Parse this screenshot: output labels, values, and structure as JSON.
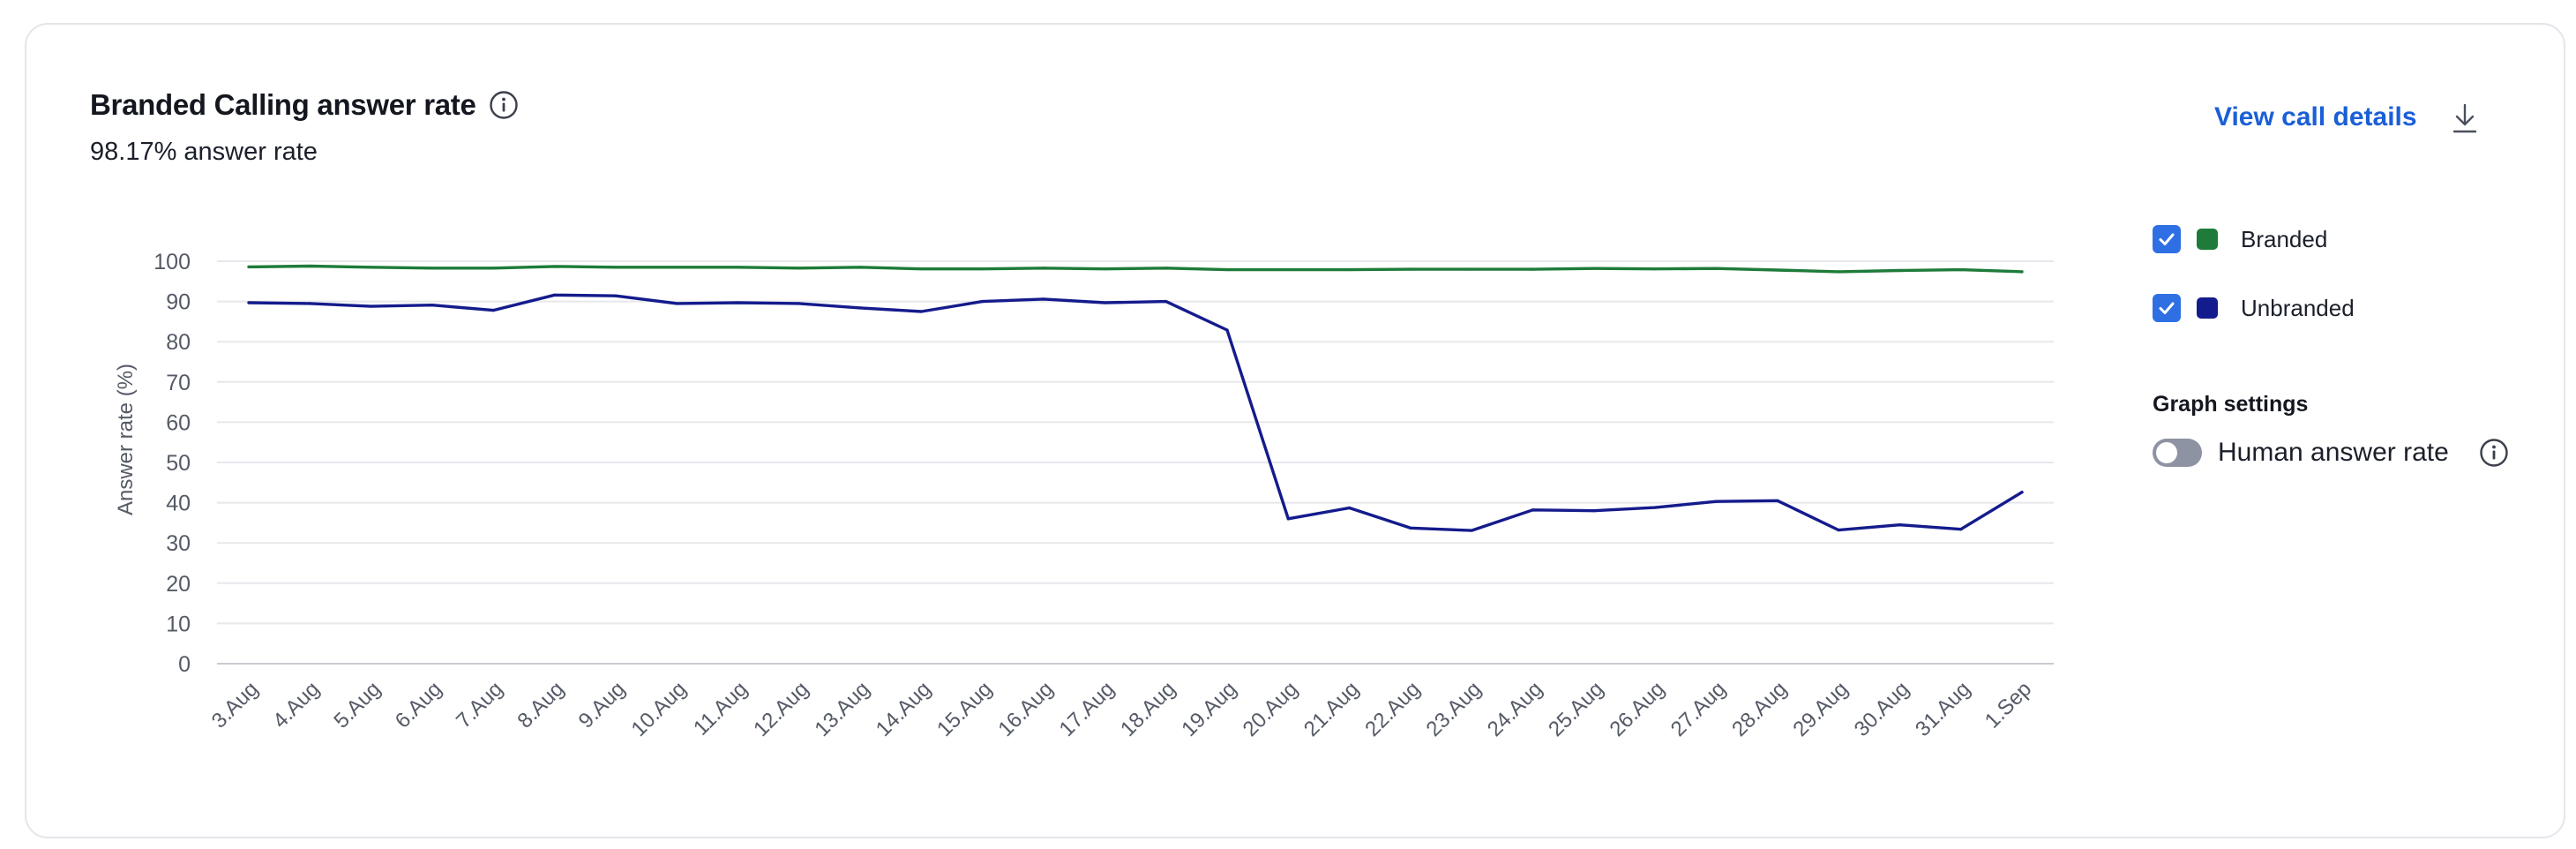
{
  "card": {
    "title": "Branded Calling answer rate",
    "subtitle": "98.17% answer rate",
    "view_link": "View call details"
  },
  "legend": {
    "items": [
      {
        "label": "Branded",
        "color": "#1e7b3a",
        "checked": true
      },
      {
        "label": "Unbranded",
        "color": "#141b8c",
        "checked": true
      }
    ]
  },
  "graph_settings": {
    "title": "Graph settings",
    "toggle_label": "Human answer rate",
    "toggle_on": false
  },
  "icons": {
    "info": "info-circle-icon",
    "download": "download-icon",
    "check": "checkmark-icon"
  },
  "chart_data": {
    "type": "line",
    "title": "",
    "xlabel": "",
    "ylabel": "Answer rate (%)",
    "ylim": [
      0,
      100
    ],
    "yticks": [
      0,
      10,
      20,
      30,
      40,
      50,
      60,
      70,
      80,
      90,
      100
    ],
    "grid": true,
    "categories": [
      "3.Aug",
      "4.Aug",
      "5.Aug",
      "6.Aug",
      "7.Aug",
      "8.Aug",
      "9.Aug",
      "10.Aug",
      "11.Aug",
      "12.Aug",
      "13.Aug",
      "14.Aug",
      "15.Aug",
      "16.Aug",
      "17.Aug",
      "18.Aug",
      "19.Aug",
      "20.Aug",
      "21.Aug",
      "22.Aug",
      "23.Aug",
      "24.Aug",
      "25.Aug",
      "26.Aug",
      "27.Aug",
      "28.Aug",
      "29.Aug",
      "30.Aug",
      "31.Aug",
      "1.Sep"
    ],
    "series": [
      {
        "name": "Branded",
        "color": "#1e7b3a",
        "values": [
          98.6,
          98.8,
          98.5,
          98.3,
          98.3,
          98.7,
          98.5,
          98.5,
          98.5,
          98.3,
          98.5,
          98.1,
          98.1,
          98.3,
          98.1,
          98.3,
          97.9,
          97.9,
          97.9,
          98.0,
          98.0,
          98.0,
          98.2,
          98.1,
          98.2,
          97.8,
          97.4,
          97.7,
          97.9,
          97.4
        ]
      },
      {
        "name": "Unbranded",
        "color": "#141b8c",
        "values": [
          89.7,
          89.5,
          88.8,
          89.1,
          87.8,
          91.6,
          91.4,
          89.5,
          89.7,
          89.5,
          88.4,
          87.5,
          90.0,
          90.6,
          89.7,
          90.0,
          82.9,
          36.0,
          38.7,
          33.7,
          33.1,
          38.2,
          38.0,
          38.8,
          40.3,
          40.5,
          33.2,
          34.5,
          33.4,
          42.6
        ]
      }
    ]
  }
}
